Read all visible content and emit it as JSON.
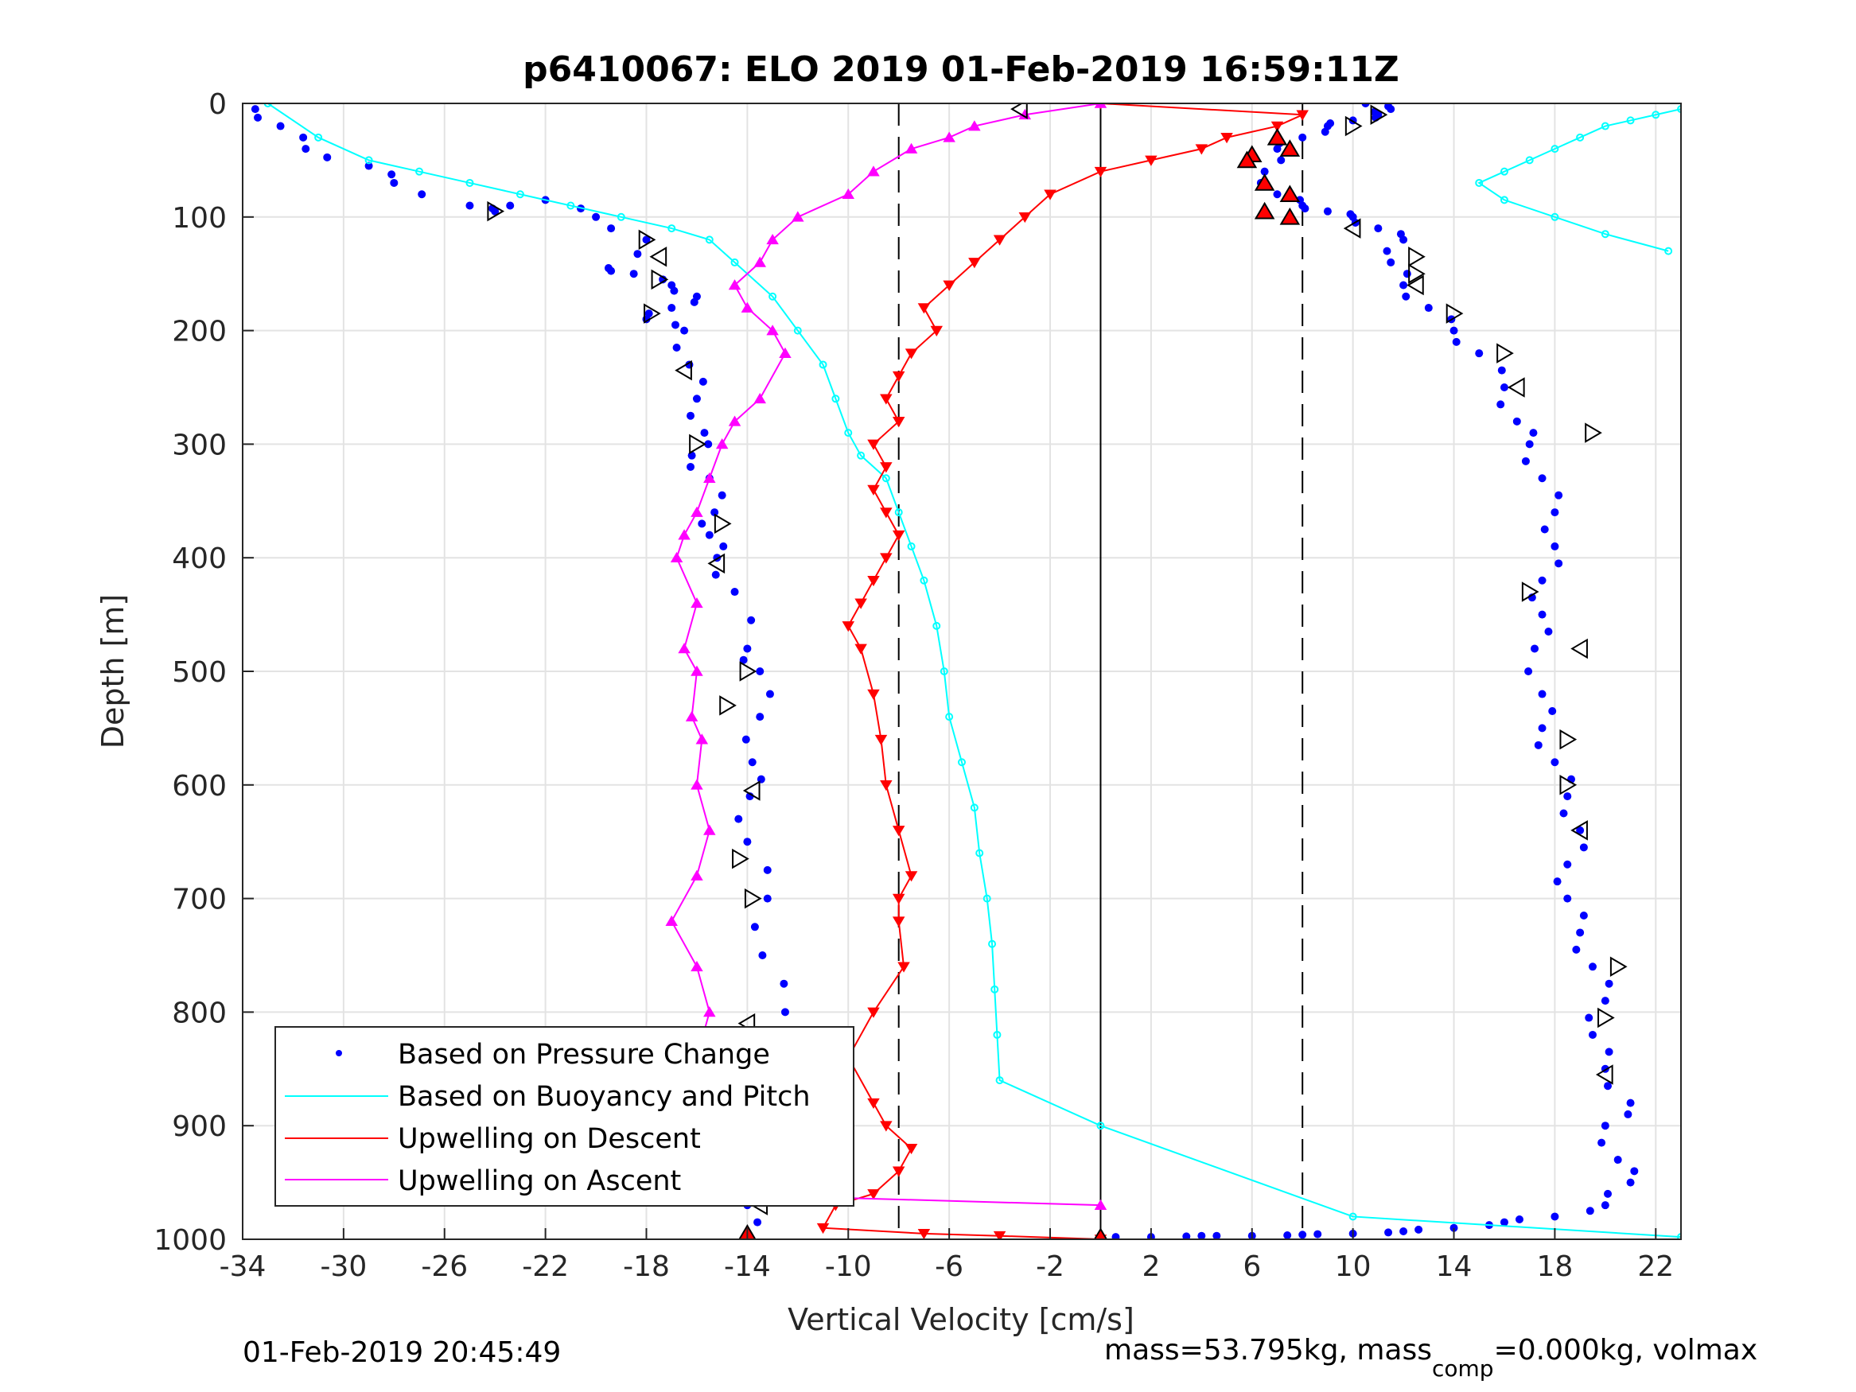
{
  "chart_data": {
    "type": "scatter",
    "title": "p6410067: ELO 2019 01-Feb-2019 16:59:11Z",
    "xlabel": "Vertical Velocity [cm/s]",
    "ylabel": "Depth [m]",
    "xlim": [
      -34,
      23
    ],
    "ylim": [
      0,
      1000
    ],
    "y_reversed": true,
    "grid": true,
    "x_ticks": [
      "-34",
      "-30",
      "-26",
      "-22",
      "-18",
      "-14",
      "-10",
      "-6",
      "-2",
      "2",
      "6",
      "10",
      "14",
      "18",
      "22"
    ],
    "y_ticks": [
      "0",
      "100",
      "200",
      "300",
      "400",
      "500",
      "600",
      "700",
      "800",
      "900",
      "1000"
    ],
    "legend_position": "bottom-left",
    "legend": [
      {
        "name": "Based on Pressure Change",
        "color": "#0000ff",
        "style": "dot"
      },
      {
        "name": "Based on Buoyancy and Pitch",
        "color": "#00ffff",
        "style": "line"
      },
      {
        "name": "Upwelling on Descent",
        "color": "#ff0000",
        "style": "line"
      },
      {
        "name": "Upwelling on Ascent",
        "color": "#ff00ff",
        "style": "line"
      }
    ],
    "reference_lines": [
      {
        "x": -8,
        "style": "dashed",
        "color": "#000000"
      },
      {
        "x": 0,
        "style": "solid",
        "color": "#000000"
      },
      {
        "x": 8,
        "style": "dashed",
        "color": "#000000"
      }
    ],
    "series": [
      {
        "name": "Based on Pressure Change",
        "kind": "descent",
        "color": "#0000ff",
        "x": [
          -33.5,
          -32.5,
          -31.5,
          -29,
          -28,
          -25,
          -24,
          -22,
          -20,
          -18,
          -19.5,
          -18.5,
          -17,
          -16,
          -17,
          -18,
          -16.5,
          -16.3,
          -16,
          -15.7,
          -16.2,
          -15.5,
          -15.3,
          -15.5,
          -15.2,
          -14.5,
          -14,
          -13.5,
          -13.5,
          -13.8,
          -13.9,
          -14,
          -13.2,
          -13.4,
          -12.5,
          -12.5,
          -12.5,
          -13.5,
          -13,
          -14,
          -14
        ],
        "y": [
          5,
          20,
          40,
          55,
          70,
          90,
          95,
          85,
          100,
          120,
          145,
          150,
          160,
          170,
          180,
          190,
          200,
          230,
          260,
          290,
          310,
          330,
          360,
          380,
          400,
          430,
          480,
          500,
          540,
          580,
          610,
          650,
          700,
          750,
          800,
          850,
          880,
          900,
          950,
          970,
          1000
        ]
      },
      {
        "name": "Based on Pressure Change",
        "kind": "ascent",
        "color": "#0000ff",
        "x": [
          0,
          2,
          4,
          6,
          8,
          10,
          12,
          14,
          16,
          18,
          20,
          21,
          20.5,
          20,
          21,
          20,
          19.5,
          20,
          19.5,
          19,
          18.5,
          18.5,
          19,
          18.5,
          18,
          17.5,
          17.5,
          17.2,
          17.5,
          17.5,
          18,
          18,
          17.5,
          17,
          16.5,
          16,
          15,
          14,
          13,
          12,
          11.5,
          12,
          11,
          10,
          9,
          8,
          7,
          6.5,
          7,
          8,
          9,
          10,
          11,
          11.5,
          10.5
        ],
        "y": [
          998,
          998,
          997,
          997,
          996,
          995,
          993,
          990,
          985,
          980,
          970,
          950,
          930,
          900,
          880,
          850,
          820,
          790,
          760,
          730,
          700,
          670,
          640,
          610,
          580,
          550,
          520,
          480,
          450,
          420,
          390,
          360,
          330,
          300,
          280,
          250,
          220,
          200,
          180,
          160,
          140,
          120,
          110,
          100,
          95,
          90,
          80,
          60,
          40,
          30,
          20,
          15,
          10,
          5,
          0
        ]
      },
      {
        "name": "Based on Buoyancy and Pitch",
        "color": "#00ffff",
        "x": [
          -33,
          -31,
          -29,
          -27,
          -25,
          -23,
          -21,
          -19,
          -17,
          -15.5,
          -14.5,
          -13,
          -12,
          -11,
          -10.5,
          -10,
          -9.5,
          -8.5,
          -8,
          -7.5,
          -7,
          -6.5,
          -6.2,
          -6,
          -5.5,
          -5,
          -4.8,
          -4.5,
          -4.3,
          -4.2,
          -4.1,
          -4,
          0,
          10,
          23
        ],
        "y": [
          0,
          30,
          50,
          60,
          70,
          80,
          90,
          100,
          110,
          120,
          140,
          170,
          200,
          230,
          260,
          290,
          310,
          330,
          360,
          390,
          420,
          460,
          500,
          540,
          580,
          620,
          660,
          700,
          740,
          780,
          820,
          860,
          900,
          980,
          998
        ],
        "x2": [
          22.5,
          20,
          18,
          16,
          15,
          16,
          17,
          18,
          19,
          20,
          21,
          22,
          23
        ],
        "y2": [
          130,
          115,
          100,
          85,
          70,
          60,
          50,
          40,
          30,
          20,
          15,
          10,
          5
        ]
      },
      {
        "name": "Upwelling on Descent",
        "color": "#ff0000",
        "x": [
          0,
          8,
          7,
          5,
          4,
          2,
          0,
          -2,
          -3,
          -4,
          -5,
          -6,
          -7,
          -6.5,
          -7.5,
          -8,
          -8.5,
          -8,
          -9,
          -8.5,
          -9,
          -8.5,
          -8,
          -8.5,
          -9,
          -9.5,
          -10,
          -9.5,
          -9,
          -8.7,
          -8.5,
          -8,
          -7.5,
          -8,
          -8,
          -7.8,
          -9,
          -10,
          -9,
          -8.5,
          -7.5,
          -8,
          -9,
          -10.5,
          -11,
          -7,
          -4,
          0
        ],
        "y": [
          0,
          10,
          20,
          30,
          40,
          50,
          60,
          80,
          100,
          120,
          140,
          160,
          180,
          200,
          220,
          240,
          260,
          280,
          300,
          320,
          340,
          360,
          380,
          400,
          420,
          440,
          460,
          480,
          520,
          560,
          600,
          640,
          680,
          700,
          720,
          760,
          800,
          840,
          880,
          900,
          920,
          940,
          960,
          970,
          990,
          995,
          997,
          1000
        ]
      },
      {
        "name": "Upwelling on Ascent",
        "color": "#ff00ff",
        "x": [
          0,
          -3,
          -5,
          -6,
          -7.5,
          -9,
          -10,
          -12,
          -13,
          -13.5,
          -14.5,
          -14,
          -13,
          -12.5,
          -13.5,
          -14.5,
          -15,
          -15.5,
          -16,
          -16.5,
          -16.8,
          -16,
          -16.5,
          -16,
          -16.2,
          -15.8,
          -16,
          -15.5,
          -16,
          -17,
          -16,
          -15.5,
          -16,
          -16.2,
          -16,
          -15.8,
          0
        ],
        "y": [
          0,
          10,
          20,
          30,
          40,
          60,
          80,
          100,
          120,
          140,
          160,
          180,
          200,
          220,
          260,
          280,
          300,
          330,
          360,
          380,
          400,
          440,
          480,
          500,
          540,
          560,
          600,
          640,
          680,
          720,
          760,
          800,
          840,
          880,
          920,
          960,
          970
        ]
      }
    ],
    "markers": {
      "open_triangles": [
        {
          "x": -3.2,
          "y": 5
        },
        {
          "x": -24,
          "y": 95
        },
        {
          "x": -18,
          "y": 120
        },
        {
          "x": -17.5,
          "y": 135
        },
        {
          "x": -17.5,
          "y": 155
        },
        {
          "x": -17.8,
          "y": 185
        },
        {
          "x": -16.5,
          "y": 235
        },
        {
          "x": -16,
          "y": 300
        },
        {
          "x": -15,
          "y": 370
        },
        {
          "x": -15.2,
          "y": 405
        },
        {
          "x": -14,
          "y": 500
        },
        {
          "x": -14.8,
          "y": 530
        },
        {
          "x": -13.8,
          "y": 605
        },
        {
          "x": -14.3,
          "y": 665
        },
        {
          "x": -13.8,
          "y": 700
        },
        {
          "x": -14,
          "y": 810
        },
        {
          "x": -12.5,
          "y": 905
        },
        {
          "x": -14.5,
          "y": 940
        },
        {
          "x": -13.5,
          "y": 970
        },
        {
          "x": 11,
          "y": 10
        },
        {
          "x": 10,
          "y": 20
        },
        {
          "x": 10,
          "y": 110
        },
        {
          "x": 12.5,
          "y": 135
        },
        {
          "x": 12.5,
          "y": 150
        },
        {
          "x": 12.5,
          "y": 160
        },
        {
          "x": 14,
          "y": 185
        },
        {
          "x": 16,
          "y": 220
        },
        {
          "x": 16.5,
          "y": 250
        },
        {
          "x": 19.5,
          "y": 290
        },
        {
          "x": 17,
          "y": 430
        },
        {
          "x": 19,
          "y": 480
        },
        {
          "x": 18.5,
          "y": 560
        },
        {
          "x": 18.5,
          "y": 600
        },
        {
          "x": 19,
          "y": 640
        },
        {
          "x": 20.5,
          "y": 760
        },
        {
          "x": 20,
          "y": 805
        },
        {
          "x": 20,
          "y": 855
        }
      ],
      "red_triangles": [
        {
          "x": 7,
          "y": 30
        },
        {
          "x": 7.5,
          "y": 40
        },
        {
          "x": 6,
          "y": 45
        },
        {
          "x": 5.8,
          "y": 50
        },
        {
          "x": 6.5,
          "y": 70
        },
        {
          "x": 7.5,
          "y": 80
        },
        {
          "x": 6.5,
          "y": 95
        },
        {
          "x": 7.5,
          "y": 100
        },
        {
          "x": -14,
          "y": 995
        },
        {
          "x": 0,
          "y": 998
        }
      ]
    }
  },
  "footer": {
    "timestamp": "01-Feb-2019 20:45:49",
    "mass_text_prefix": "mass=53.795kg, mass",
    "mass_text_sub": "comp",
    "mass_text_suffix": "=0.000kg, volmax"
  }
}
